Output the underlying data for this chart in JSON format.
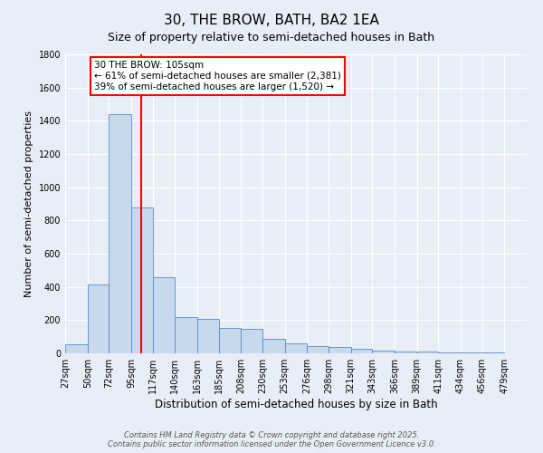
{
  "title": "30, THE BROW, BATH, BA2 1EA",
  "subtitle": "Size of property relative to semi-detached houses in Bath",
  "xlabel": "Distribution of semi-detached houses by size in Bath",
  "ylabel": "Number of semi-detached properties",
  "bar_color": "#c8d9ee",
  "bar_edge_color": "#5a8ab8",
  "background_color": "#e8eef8",
  "grid_color": "#ffffff",
  "vline_color": "red",
  "vline_x_bin_index": 3,
  "annotation_title": "30 THE BROW: 105sqm",
  "annotation_line1": "← 61% of semi-detached houses are smaller (2,381)",
  "annotation_line2": "39% of semi-detached houses are larger (1,520) →",
  "bins": [
    27,
    50,
    72,
    95,
    117,
    140,
    163,
    185,
    208,
    230,
    253,
    276,
    298,
    321,
    343,
    366,
    389,
    411,
    434,
    456,
    479
  ],
  "values": [
    55,
    415,
    1440,
    880,
    460,
    220,
    210,
    155,
    145,
    85,
    60,
    45,
    38,
    28,
    18,
    13,
    10,
    5,
    8,
    4,
    2
  ],
  "ylim": [
    0,
    1800
  ],
  "yticks": [
    0,
    200,
    400,
    600,
    800,
    1000,
    1200,
    1400,
    1600,
    1800
  ],
  "footer": "Contains HM Land Registry data © Crown copyright and database right 2025.\nContains public sector information licensed under the Open Government Licence v3.0.",
  "title_fontsize": 11,
  "subtitle_fontsize": 9,
  "ylabel_fontsize": 8,
  "xlabel_fontsize": 8.5,
  "tick_fontsize": 7,
  "annotation_fontsize": 7.5,
  "footer_fontsize": 6
}
